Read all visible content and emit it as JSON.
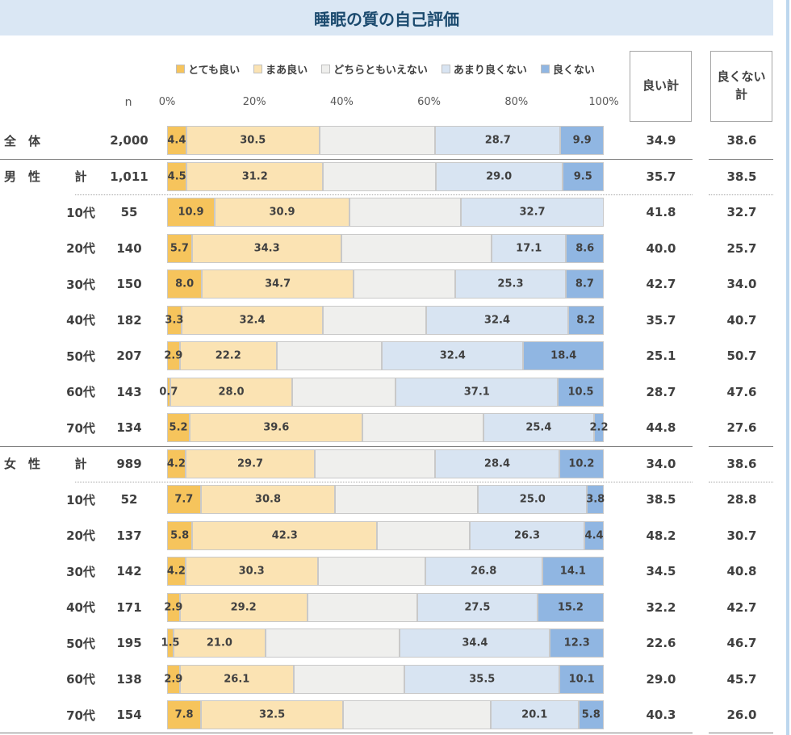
{
  "title": "睡眠の質の自己評価",
  "axis": {
    "n_label": "n"
  },
  "summary": {
    "good_header": "良い計",
    "bad_header": "良くない\n計"
  },
  "colors": {
    "header_bg": "#DAE7F4",
    "title": "#1B4A6E",
    "edge_strip": "#BDD7EE",
    "text": "#404040",
    "axis_text": "#595959",
    "box_border": "#A6A6A6",
    "solid_line": "#7F7F7F",
    "dotted_line": "#A6A6A6",
    "series": [
      "#F6C45C",
      "#FBE3B3",
      "#EFEFED",
      "#D8E4F2",
      "#90B6E2"
    ]
  },
  "chart_data": {
    "type": "bar",
    "stacked": true,
    "orientation": "horizontal",
    "title": "睡眠の質の自己評価",
    "series_names": [
      "とても良い",
      "まあ良い",
      "どちらともいえない",
      "あまり良くない",
      "良くない"
    ],
    "x_axis": {
      "ticks": [
        "0%",
        "20%",
        "40%",
        "60%",
        "80%",
        "100%"
      ],
      "range": [
        0,
        100
      ]
    },
    "unlabeled_series_index": 2,
    "rows": [
      {
        "group": "全　体",
        "sub": "",
        "n": "2,000",
        "values": [
          4.4,
          30.5,
          26.5,
          28.7,
          9.9
        ],
        "good_total": 34.9,
        "bad_total": 38.6,
        "sep": "none"
      },
      {
        "group": "男　性",
        "sub": "計",
        "n": "1,011",
        "values": [
          4.5,
          31.2,
          25.8,
          29.0,
          9.5
        ],
        "good_total": 35.7,
        "bad_total": 38.5,
        "sep": "solid"
      },
      {
        "group": "",
        "sub": "10代",
        "n": "55",
        "values": [
          10.9,
          30.9,
          25.5,
          32.7,
          0.0
        ],
        "good_total": 41.8,
        "bad_total": 32.7,
        "sep": "dotted"
      },
      {
        "group": "",
        "sub": "20代",
        "n": "140",
        "values": [
          5.7,
          34.3,
          34.3,
          17.1,
          8.6
        ],
        "good_total": 40.0,
        "bad_total": 25.7,
        "sep": "none"
      },
      {
        "group": "",
        "sub": "30代",
        "n": "150",
        "values": [
          8.0,
          34.7,
          23.3,
          25.3,
          8.7
        ],
        "good_total": 42.7,
        "bad_total": 34.0,
        "sep": "none"
      },
      {
        "group": "",
        "sub": "40代",
        "n": "182",
        "values": [
          3.3,
          32.4,
          23.7,
          32.4,
          8.2
        ],
        "good_total": 35.7,
        "bad_total": 40.7,
        "sep": "none"
      },
      {
        "group": "",
        "sub": "50代",
        "n": "207",
        "values": [
          2.9,
          22.2,
          24.1,
          32.4,
          18.4
        ],
        "good_total": 25.1,
        "bad_total": 50.7,
        "sep": "none"
      },
      {
        "group": "",
        "sub": "60代",
        "n": "143",
        "values": [
          0.7,
          28.0,
          23.7,
          37.1,
          10.5
        ],
        "good_total": 28.7,
        "bad_total": 47.6,
        "sep": "none"
      },
      {
        "group": "",
        "sub": "70代",
        "n": "134",
        "values": [
          5.2,
          39.6,
          27.6,
          25.4,
          2.2
        ],
        "good_total": 44.8,
        "bad_total": 27.6,
        "sep": "none"
      },
      {
        "group": "女　性",
        "sub": "計",
        "n": "989",
        "values": [
          4.2,
          29.7,
          27.5,
          28.4,
          10.2
        ],
        "good_total": 34.0,
        "bad_total": 38.6,
        "sep": "solid"
      },
      {
        "group": "",
        "sub": "10代",
        "n": "52",
        "values": [
          7.7,
          30.8,
          32.7,
          25.0,
          3.8
        ],
        "good_total": 38.5,
        "bad_total": 28.8,
        "sep": "dotted"
      },
      {
        "group": "",
        "sub": "20代",
        "n": "137",
        "values": [
          5.8,
          42.3,
          21.2,
          26.3,
          4.4
        ],
        "good_total": 48.2,
        "bad_total": 30.7,
        "sep": "none"
      },
      {
        "group": "",
        "sub": "30代",
        "n": "142",
        "values": [
          4.2,
          30.3,
          24.6,
          26.8,
          14.1
        ],
        "good_total": 34.5,
        "bad_total": 40.8,
        "sep": "none"
      },
      {
        "group": "",
        "sub": "40代",
        "n": "171",
        "values": [
          2.9,
          29.2,
          25.2,
          27.5,
          15.2
        ],
        "good_total": 32.2,
        "bad_total": 42.7,
        "sep": "none"
      },
      {
        "group": "",
        "sub": "50代",
        "n": "195",
        "values": [
          1.5,
          21.0,
          30.8,
          34.4,
          12.3
        ],
        "good_total": 22.6,
        "bad_total": 46.7,
        "sep": "none"
      },
      {
        "group": "",
        "sub": "60代",
        "n": "138",
        "values": [
          2.9,
          26.1,
          25.4,
          35.5,
          10.1
        ],
        "good_total": 29.0,
        "bad_total": 45.7,
        "sep": "none"
      },
      {
        "group": "",
        "sub": "70代",
        "n": "154",
        "values": [
          7.8,
          32.5,
          33.8,
          20.1,
          5.8
        ],
        "good_total": 40.3,
        "bad_total": 26.0,
        "sep": "none"
      }
    ]
  }
}
